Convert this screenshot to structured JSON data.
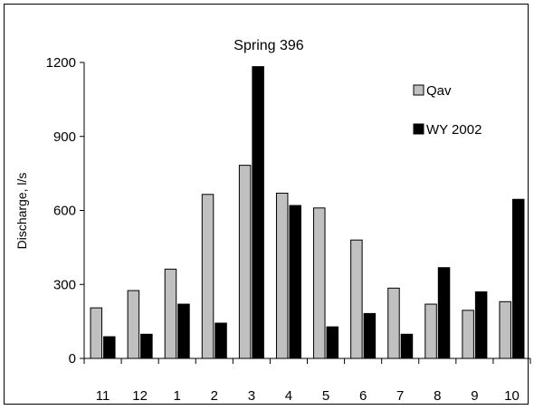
{
  "chart_data": {
    "type": "bar",
    "title": "Spring 396",
    "xlabel": "",
    "ylabel": "Discharge, l/s",
    "ylim": [
      0,
      1200
    ],
    "yticks": [
      0,
      300,
      600,
      900,
      1200
    ],
    "categories": [
      "11",
      "12",
      "1",
      "2",
      "3",
      "4",
      "5",
      "6",
      "7",
      "8",
      "9",
      "10"
    ],
    "series": [
      {
        "name": "Qav",
        "color": "#c0c0c0",
        "values": [
          205,
          275,
          362,
          665,
          783,
          670,
          610,
          480,
          285,
          220,
          195,
          230
        ]
      },
      {
        "name": "WY 2002",
        "color": "#000000",
        "values": [
          88,
          98,
          220,
          143,
          1183,
          620,
          128,
          182,
          98,
          368,
          270,
          645
        ]
      }
    ],
    "legend_position": "top-right",
    "grid": false
  }
}
